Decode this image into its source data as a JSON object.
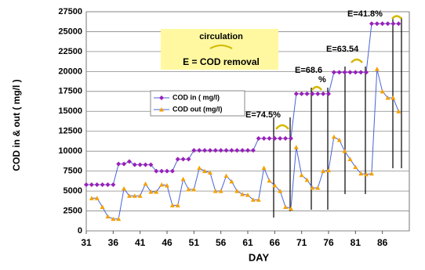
{
  "chart_data": {
    "type": "line",
    "x_label": "DAY",
    "y_label": "COD in & out ( mg/l )",
    "xlim": [
      31,
      91
    ],
    "xticks": [
      31,
      36,
      41,
      46,
      51,
      56,
      61,
      66,
      71,
      76,
      81,
      86
    ],
    "ylim": [
      0,
      27500
    ],
    "yticks": [
      0,
      2500,
      5000,
      7500,
      10000,
      12500,
      15000,
      17500,
      20000,
      22500,
      25000,
      27500
    ],
    "grid": true,
    "line_color": "#4a63d8",
    "series": [
      {
        "name": "COD in ( mg/l)",
        "color": "#9b1fb8",
        "marker": "diamond",
        "x": [
          31,
          32,
          33,
          34,
          35,
          36,
          37,
          38,
          39,
          40,
          41,
          42,
          43,
          44,
          45,
          46,
          47,
          48,
          49,
          50,
          51,
          52,
          53,
          54,
          55,
          56,
          57,
          58,
          59,
          60,
          61,
          62,
          63,
          64,
          65,
          66,
          67,
          68,
          69,
          70,
          71,
          72,
          73,
          74,
          75,
          76,
          77,
          78,
          79,
          80,
          81,
          82,
          83,
          84,
          85,
          86,
          87,
          88,
          89
        ],
        "values": [
          5800,
          5800,
          5800,
          5800,
          5800,
          5800,
          8400,
          8400,
          8700,
          8300,
          8300,
          8300,
          8300,
          7500,
          7500,
          7500,
          7500,
          9000,
          9000,
          9000,
          10100,
          10100,
          10100,
          10100,
          10100,
          10100,
          10100,
          10100,
          10100,
          10100,
          10100,
          10100,
          11600,
          11600,
          11600,
          11600,
          11600,
          11600,
          11600,
          17200,
          17200,
          17200,
          17200,
          17200,
          17200,
          17200,
          19900,
          19900,
          19900,
          19900,
          19900,
          19900,
          19900,
          26000,
          26000,
          26000,
          26000,
          26000,
          26000
        ]
      },
      {
        "name": "COD out (mg/l)",
        "color": "#f5a000",
        "marker": "triangle",
        "x": [
          32,
          33,
          34,
          35,
          36,
          37,
          38,
          39,
          40,
          41,
          42,
          43,
          44,
          45,
          46,
          47,
          48,
          49,
          50,
          51,
          52,
          53,
          54,
          55,
          56,
          57,
          58,
          59,
          60,
          61,
          62,
          63,
          64,
          65,
          66,
          67,
          68,
          69,
          70,
          71,
          72,
          73,
          74,
          75,
          76,
          77,
          78,
          79,
          80,
          81,
          82,
          83,
          84,
          85,
          86,
          87,
          88,
          89
        ],
        "values": [
          4100,
          4100,
          3000,
          1800,
          1500,
          1500,
          5300,
          4400,
          4400,
          4400,
          5900,
          4900,
          4900,
          5800,
          5700,
          3200,
          3200,
          6500,
          5200,
          5200,
          7900,
          7500,
          7300,
          5000,
          5000,
          6900,
          6200,
          5000,
          4600,
          4500,
          3900,
          3900,
          7900,
          6300,
          5700,
          5000,
          3000,
          2800,
          10500,
          7000,
          6400,
          5400,
          5400,
          7500,
          7600,
          11800,
          11400,
          10000,
          9000,
          8000,
          7200,
          7100,
          7200,
          20300,
          17500,
          16700,
          16700,
          15000
        ]
      }
    ],
    "annotations": [
      "E=74.5%",
      "E=68.6",
      "%",
      "E=63.54",
      "E=41.8%"
    ],
    "note_box": [
      "circulation",
      "E = COD removal"
    ]
  }
}
